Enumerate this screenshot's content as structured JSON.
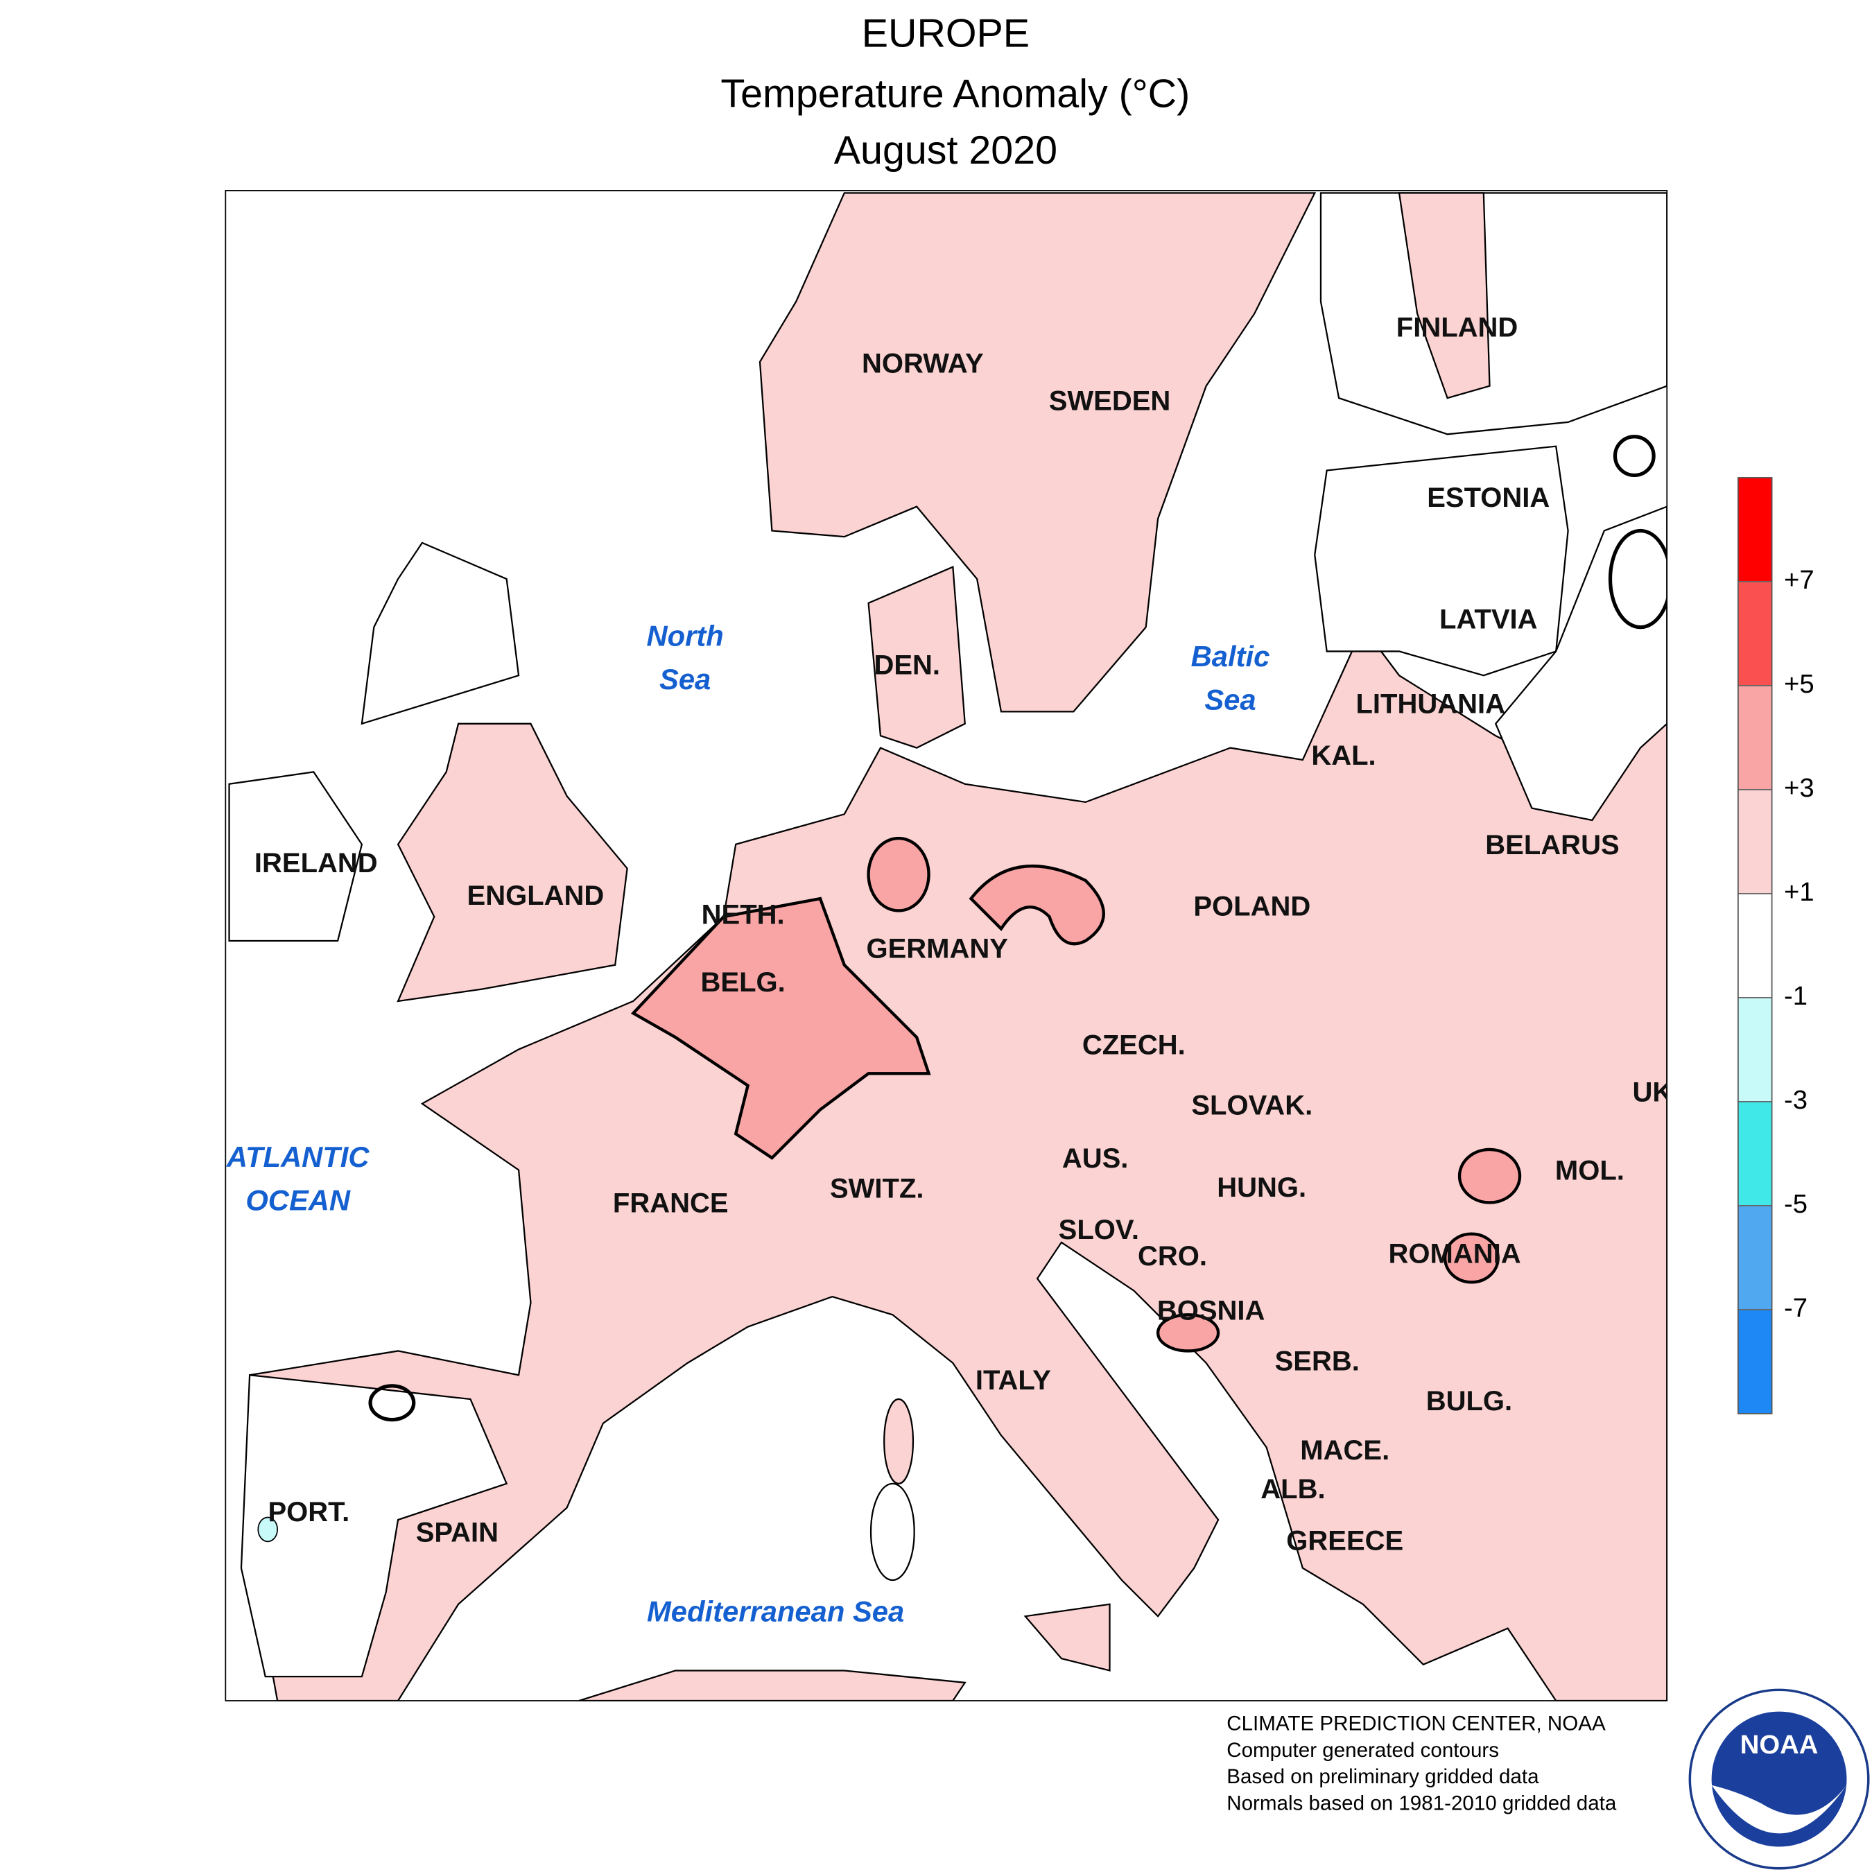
{
  "header": {
    "title": "EUROPE",
    "subtitle": "Temperature Anomaly (°C)",
    "period": "August 2020"
  },
  "labels": {
    "countries": [
      "NORWAY",
      "SWEDEN",
      "FINLAND",
      "ESTONIA",
      "LATVIA",
      "LITHUANIA",
      "KAL.",
      "BELARUS",
      "POLAND",
      "DEN.",
      "IRELAND",
      "ENGLAND",
      "NETH.",
      "BELG.",
      "GERMANY",
      "CZECH.",
      "SLOVAK.",
      "UK",
      "AUS.",
      "HUNG.",
      "MOL.",
      "SWITZ.",
      "FRANCE",
      "SLOV.",
      "CRO.",
      "ROMANIA",
      "BOSNIA",
      "SERB.",
      "ITALY",
      "BULG.",
      "MACE.",
      "ALB.",
      "GREECE",
      "PORT.",
      "SPAIN"
    ],
    "seas": [
      "North",
      "Sea",
      "Baltic",
      "Sea",
      "ATLANTIC",
      "OCEAN",
      "Mediterranean Sea"
    ]
  },
  "colorbar": {
    "lim": [
      -9,
      9
    ],
    "ticks": [
      -7,
      -5,
      -3,
      -1,
      {
        "value": 1,
        "label": "+1"
      },
      {
        "value": 3,
        "label": "+3"
      },
      {
        "value": 5,
        "label": "+5"
      },
      {
        "value": 7,
        "label": "+7"
      }
    ],
    "colors": [
      "#1e88f5",
      "#50a8f0",
      "#40e8e8",
      "#c8fafa",
      "#ffffff",
      "#fcd3d3",
      "#faa5a5",
      "#fb5050",
      "#ff0000"
    ]
  },
  "footer": [
    "CLIMATE PREDICTION CENTER, NOAA",
    "Computer generated contours",
    "Based on preliminary gridded data",
    "Normals based on 1981-2010 gridded data"
  ],
  "logo_text": "NOAA"
}
